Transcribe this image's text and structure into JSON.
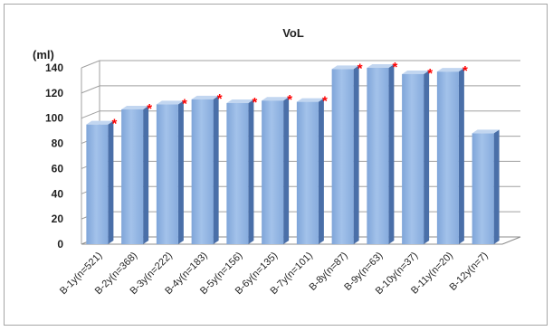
{
  "chart_data": {
    "type": "bar",
    "title": "VoL",
    "ylabel": "(ml)",
    "xlabel": "",
    "ylim": [
      0,
      140
    ],
    "yticks": [
      0,
      20,
      40,
      60,
      80,
      100,
      120,
      140
    ],
    "grid": true,
    "legend": "none",
    "bar_color": "#8db3e2",
    "marker_color": "#ff0000",
    "marker_symbol": "*",
    "categories": [
      "B-1y(n=521)",
      "B-2y(n=368)",
      "B-3y(n=222)",
      "B-4y(n=183)",
      "B-5y(n=156)",
      "B-6y(n=135)",
      "B-7y(n=101)",
      "B-8y(n=87)",
      "B-9y(n=63)",
      "B-10y(n=37)",
      "B-11y(n=20)",
      "B-12y(n=7)"
    ],
    "values": [
      95,
      107,
      111,
      115,
      112,
      114,
      113,
      139,
      140,
      135,
      137,
      88
    ],
    "significant": [
      true,
      true,
      true,
      true,
      true,
      true,
      true,
      true,
      true,
      true,
      true,
      false
    ]
  }
}
